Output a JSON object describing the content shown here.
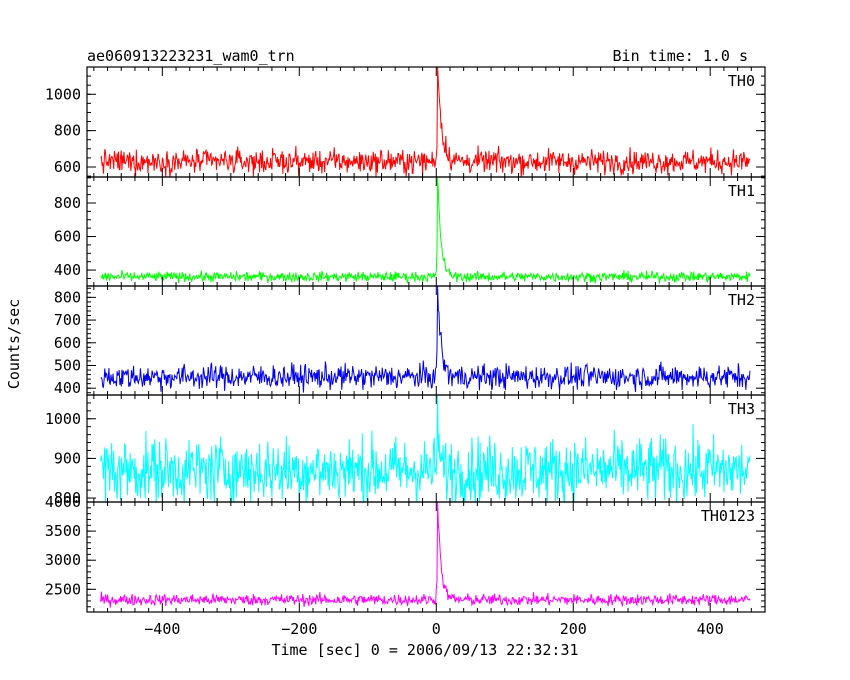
{
  "header": {
    "title": "ae060913223231_wam0_trn",
    "bin_time": "Bin time: 1.0 s"
  },
  "chart_data": {
    "type": "line",
    "title": "ae060913223231_wam0_trn",
    "subtitle": "Bin time: 1.0 s",
    "xlabel": "Time [sec] 0 = 2006/09/13 22:32:31",
    "ylabel": "Counts/sec",
    "xlim": [
      -510,
      480
    ],
    "x_range": [
      -490,
      458
    ],
    "x_ticks": [
      -400,
      -200,
      0,
      200,
      400
    ],
    "x_tick_labels": [
      "−400",
      "−200",
      "0",
      "200",
      "400"
    ],
    "grid": false,
    "panels": [
      {
        "name": "TH0",
        "color": "#ff0000",
        "ylim": [
          545,
          1150
        ],
        "y_ticks": [
          600,
          800,
          1000
        ],
        "y_tick_labels": [
          "600",
          "800",
          "1000"
        ],
        "baseline": 630,
        "noise": 33,
        "peak_time": 2,
        "peak_value": 1150,
        "decay_sec": 6
      },
      {
        "name": "TH1",
        "color": "#00ff00",
        "ylim": [
          305,
          955
        ],
        "y_ticks": [
          400,
          600,
          800
        ],
        "y_tick_labels": [
          "400",
          "600",
          "800"
        ],
        "baseline": 360,
        "noise": 15,
        "peak_time": 2,
        "peak_value": 955,
        "decay_sec": 5
      },
      {
        "name": "TH2",
        "color": "#0000ee",
        "ylim": [
          370,
          850
        ],
        "y_ticks": [
          400,
          500,
          600,
          700,
          800
        ],
        "y_tick_labels": [
          "400",
          "500",
          "600",
          "700",
          "800"
        ],
        "baseline": 450,
        "noise": 27,
        "peak_time": 2,
        "peak_value": 850,
        "decay_sec": 5
      },
      {
        "name": "TH3",
        "color": "#00ffff",
        "ylim": [
          790,
          1060
        ],
        "y_ticks": [
          800,
          900,
          1000
        ],
        "y_tick_labels": [
          "800",
          "900",
          "1000"
        ],
        "baseline": 870,
        "noise": 42,
        "peak_time": 2,
        "peak_value": 1060,
        "decay_sec": 2
      },
      {
        "name": "TH0123",
        "color": "#ff00ff",
        "ylim": [
          2110,
          4000
        ],
        "y_ticks": [
          2500,
          3000,
          3500,
          4000
        ],
        "y_tick_labels": [
          "2500",
          "3000",
          "3500",
          "4000"
        ],
        "baseline": 2320,
        "noise": 50,
        "peak_time": 2,
        "peak_value": 4000,
        "decay_sec": 5
      }
    ]
  }
}
